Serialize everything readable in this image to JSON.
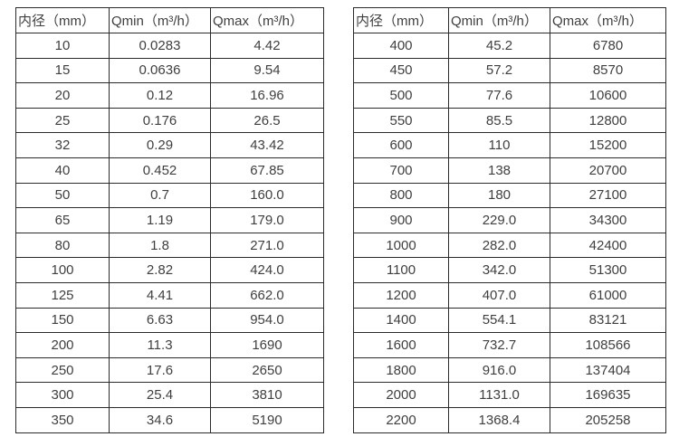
{
  "colors": {
    "background": "#ffffff",
    "border": "#2b2b2b",
    "text": "#3f3f3f"
  },
  "chart_data": [
    {
      "type": "table",
      "columns": [
        "内径（mm）",
        "Qmin（m³/h）",
        "Qmax（m³/h）"
      ],
      "rows": [
        [
          "10",
          "0.0283",
          "4.42"
        ],
        [
          "15",
          "0.0636",
          "9.54"
        ],
        [
          "20",
          "0.12",
          "16.96"
        ],
        [
          "25",
          "0.176",
          "26.5"
        ],
        [
          "32",
          "0.29",
          "43.42"
        ],
        [
          "40",
          "0.452",
          "67.85"
        ],
        [
          "50",
          "0.7",
          "160.0"
        ],
        [
          "65",
          "1.19",
          "179.0"
        ],
        [
          "80",
          "1.8",
          "271.0"
        ],
        [
          "100",
          "2.82",
          "424.0"
        ],
        [
          "125",
          "4.41",
          "662.0"
        ],
        [
          "150",
          "6.63",
          "954.0"
        ],
        [
          "200",
          "11.3",
          "1690"
        ],
        [
          "250",
          "17.6",
          "2650"
        ],
        [
          "300",
          "25.4",
          "3810"
        ],
        [
          "350",
          "34.6",
          "5190"
        ]
      ]
    },
    {
      "type": "table",
      "columns": [
        "内径（mm）",
        "Qmin（m³/h）",
        "Qmax（m³/h）"
      ],
      "rows": [
        [
          "400",
          "45.2",
          "6780"
        ],
        [
          "450",
          "57.2",
          "8570"
        ],
        [
          "500",
          "77.6",
          "10600"
        ],
        [
          "550",
          "85.5",
          "12800"
        ],
        [
          "600",
          "110",
          "15200"
        ],
        [
          "700",
          "138",
          "20700"
        ],
        [
          "800",
          "180",
          "27100"
        ],
        [
          "900",
          "229.0",
          "34300"
        ],
        [
          "1000",
          "282.0",
          "42400"
        ],
        [
          "1100",
          "342.0",
          "51300"
        ],
        [
          "1200",
          "407.0",
          "61000"
        ],
        [
          "1400",
          "554.1",
          "83121"
        ],
        [
          "1600",
          "732.7",
          "108566"
        ],
        [
          "1800",
          "916.0",
          "137404"
        ],
        [
          "2000",
          "1131.0",
          "169635"
        ],
        [
          "2200",
          "1368.4",
          "205258"
        ]
      ]
    }
  ]
}
